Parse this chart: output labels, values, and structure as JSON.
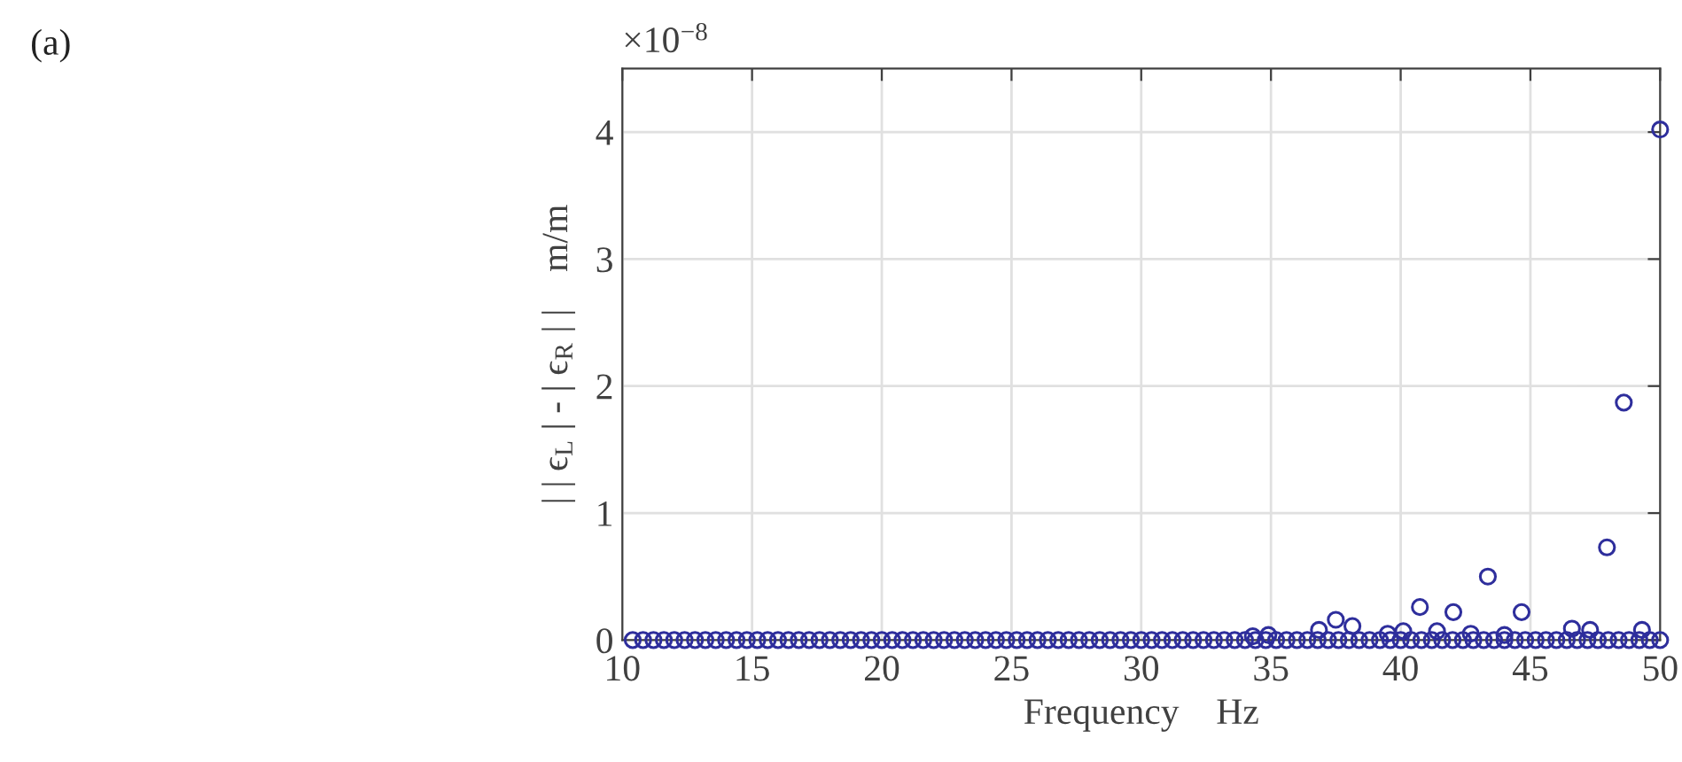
{
  "chart_data": {
    "type": "scatter",
    "title": "(a)",
    "xlabel": "Frequency    Hz",
    "ylabel": "| | ϵ$_{L}$ | - | ϵ$_{R}$ | |    m/m",
    "annotations": [
      "×10$^{−8}$"
    ],
    "series": [
      {
        "color": "#2e2e9c",
        "x": [
          10.4,
          10.8,
          11.2,
          11.6,
          12.0,
          12.4,
          12.8,
          13.2,
          13.6,
          14.0,
          14.4,
          14.8,
          15.2,
          15.6,
          16.0,
          16.4,
          16.8,
          17.2,
          17.6,
          18.0,
          18.4,
          18.8,
          19.2,
          19.6,
          20.0,
          20.4,
          20.8,
          21.2,
          21.6,
          22.0,
          22.4,
          22.8,
          23.2,
          23.6,
          24.0,
          24.4,
          24.8,
          25.2,
          25.6,
          26.0,
          26.4,
          26.8,
          27.2,
          27.6,
          28.0,
          28.4,
          28.8,
          29.2,
          29.6,
          30.0,
          30.4,
          30.8,
          31.2,
          31.6,
          32.0,
          32.4,
          32.8,
          33.2,
          33.6,
          34.0,
          34.4,
          34.8,
          35.2,
          35.6,
          36.0,
          36.4,
          36.8,
          37.2,
          37.6,
          38.0,
          38.4,
          38.8,
          39.2,
          39.6,
          40.0,
          40.4,
          40.8,
          41.2,
          41.6,
          42.0,
          42.4,
          42.8,
          43.2,
          43.6,
          44.0,
          44.4,
          44.8,
          45.2,
          45.6,
          46.0,
          46.4,
          46.8,
          47.2,
          47.6,
          48.0,
          48.4,
          48.8,
          49.2,
          49.6,
          50.0,
          34.3,
          34.9,
          36.85,
          37.5,
          38.14,
          39.5,
          40.1,
          40.74,
          41.4,
          42.03,
          42.7,
          43.36,
          44.0,
          44.66,
          46.6,
          47.3,
          47.95,
          48.6,
          49.3,
          50.0
        ],
        "values": [
          0,
          0,
          0,
          0,
          0,
          0,
          0,
          0,
          0,
          0,
          0,
          0,
          0,
          0,
          0,
          0,
          0,
          0,
          0,
          0,
          0,
          0,
          0,
          0,
          0,
          0,
          0,
          0,
          0,
          0,
          0,
          0,
          0,
          0,
          0,
          0,
          0,
          0,
          0,
          0,
          0,
          0,
          0,
          0,
          0,
          0,
          0,
          0,
          0,
          0,
          0,
          0,
          0,
          0,
          0,
          0,
          0,
          0,
          0,
          0,
          0,
          0,
          0,
          0,
          0,
          0,
          0,
          0,
          0,
          0,
          0,
          0,
          0,
          0,
          0,
          0,
          0,
          0,
          0,
          0,
          0,
          0,
          0,
          0,
          0,
          0,
          0,
          0,
          0,
          0,
          0,
          0,
          0,
          0,
          0,
          0,
          0,
          0,
          0,
          0,
          0.03,
          0.04,
          0.08,
          0.16,
          0.11,
          0.05,
          0.07,
          0.26,
          0.07,
          0.22,
          0.05,
          0.5,
          0.04,
          0.22,
          0.09,
          0.08,
          0.73,
          1.87,
          0.08,
          4.02
        ]
      }
    ],
    "xlim": [
      10,
      50
    ],
    "ylim": [
      0,
      4.5
    ],
    "xticks": [
      10,
      15,
      20,
      25,
      30,
      35,
      40,
      45,
      50
    ],
    "yticks": [
      0,
      1,
      2,
      3,
      4
    ],
    "grid": true,
    "marker": "circle"
  }
}
